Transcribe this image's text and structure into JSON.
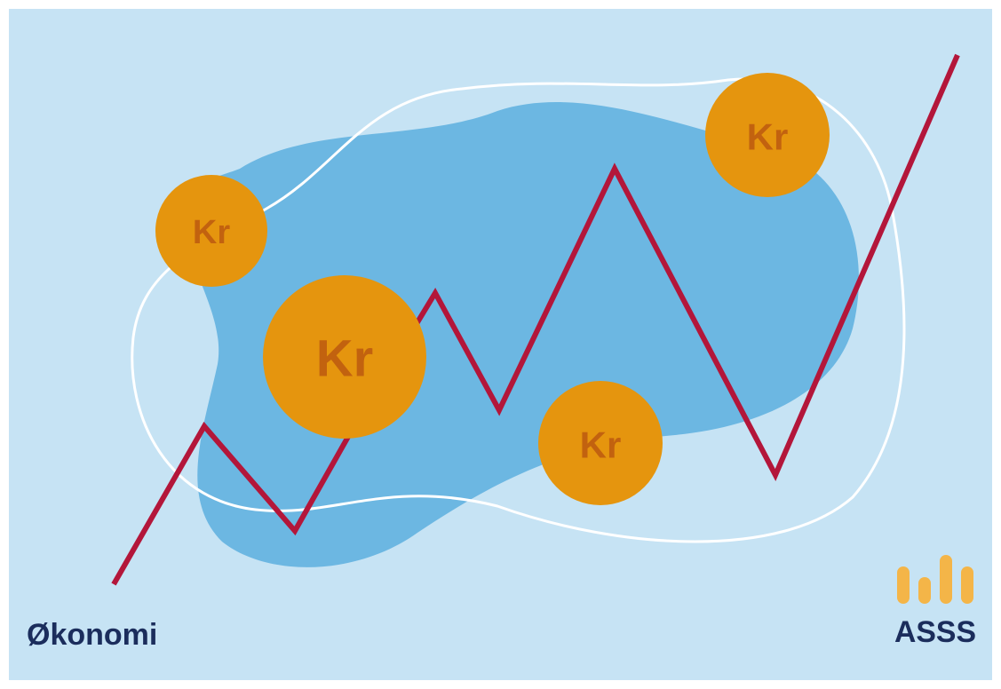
{
  "coins": [
    {
      "label": "Kr"
    },
    {
      "label": "Kr"
    },
    {
      "label": "Kr"
    },
    {
      "label": "Kr"
    },
    {
      "label": "Kr"
    }
  ],
  "caption": "Økonomi",
  "logo": "ASSS"
}
